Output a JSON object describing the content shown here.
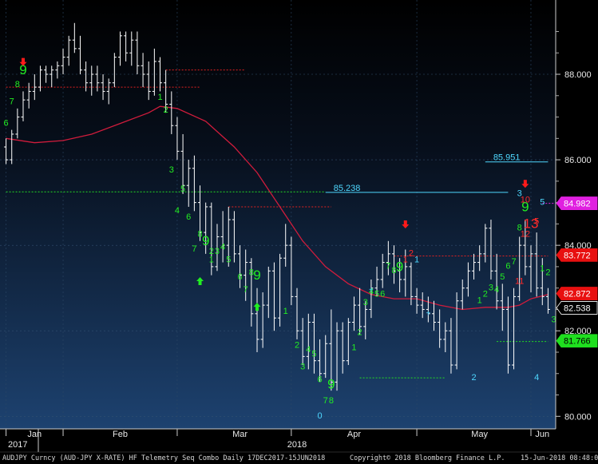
{
  "chart_data": {
    "type": "candlestick",
    "ylim": [
      79.8,
      89.7
    ],
    "y_ticks": [
      "80.000",
      "82.000",
      "84.000",
      "86.000",
      "88.000"
    ],
    "x_labels": [
      "Jan",
      "Feb",
      "Mar",
      "Apr",
      "May",
      "Jun"
    ],
    "year_labels": [
      "2017",
      "2018"
    ],
    "ohlc": [
      [
        86.3,
        86.5,
        85.9,
        86.0
      ],
      [
        86.0,
        86.7,
        85.9,
        86.6
      ],
      [
        86.6,
        87.2,
        86.5,
        87.0
      ],
      [
        87.0,
        87.6,
        86.9,
        87.4
      ],
      [
        87.4,
        87.8,
        87.2,
        87.6
      ],
      [
        87.6,
        88.0,
        87.4,
        87.7
      ],
      [
        87.7,
        88.2,
        87.6,
        88.1
      ],
      [
        88.1,
        88.2,
        87.8,
        88.0
      ],
      [
        88.0,
        88.2,
        87.7,
        88.1
      ],
      [
        88.1,
        88.3,
        87.9,
        88.2
      ],
      [
        88.2,
        88.6,
        88.0,
        88.4
      ],
      [
        88.4,
        88.9,
        88.2,
        88.8
      ],
      [
        88.8,
        89.2,
        88.5,
        88.6
      ],
      [
        88.6,
        88.9,
        88.0,
        88.1
      ],
      [
        88.1,
        88.3,
        87.6,
        87.8
      ],
      [
        87.8,
        88.2,
        87.5,
        88.0
      ],
      [
        88.0,
        88.2,
        87.6,
        87.8
      ],
      [
        87.8,
        88.0,
        87.4,
        87.6
      ],
      [
        87.6,
        87.9,
        87.3,
        87.8
      ],
      [
        87.8,
        88.5,
        87.7,
        88.4
      ],
      [
        88.4,
        89.0,
        88.2,
        88.9
      ],
      [
        88.9,
        89.0,
        88.3,
        88.5
      ],
      [
        88.5,
        89.0,
        88.2,
        88.8
      ],
      [
        88.8,
        89.0,
        88.0,
        88.2
      ],
      [
        88.2,
        88.5,
        87.7,
        88.0
      ],
      [
        88.0,
        88.3,
        87.4,
        87.6
      ],
      [
        87.6,
        88.6,
        87.5,
        88.3
      ],
      [
        88.3,
        88.4,
        87.6,
        87.8
      ],
      [
        87.8,
        88.1,
        87.1,
        87.3
      ],
      [
        87.3,
        87.6,
        86.6,
        86.8
      ],
      [
        86.8,
        87.0,
        86.0,
        86.2
      ],
      [
        86.2,
        86.6,
        85.2,
        85.4
      ],
      [
        85.4,
        86.0,
        84.9,
        85.8
      ],
      [
        85.8,
        86.1,
        84.8,
        85.0
      ],
      [
        85.0,
        85.4,
        84.1,
        84.3
      ],
      [
        84.3,
        85.0,
        83.8,
        84.9
      ],
      [
        84.9,
        85.0,
        83.3,
        83.5
      ],
      [
        83.5,
        84.5,
        83.4,
        84.2
      ],
      [
        84.2,
        84.8,
        83.6,
        84.0
      ],
      [
        84.0,
        84.9,
        83.5,
        84.6
      ],
      [
        84.6,
        84.8,
        83.6,
        83.8
      ],
      [
        83.8,
        84.0,
        83.0,
        83.3
      ],
      [
        83.3,
        83.9,
        82.7,
        83.6
      ],
      [
        83.6,
        83.7,
        82.1,
        82.4
      ],
      [
        82.4,
        83.0,
        81.5,
        81.8
      ],
      [
        81.8,
        82.9,
        81.6,
        82.6
      ],
      [
        82.6,
        83.5,
        82.3,
        83.4
      ],
      [
        83.4,
        83.6,
        82.0,
        82.3
      ],
      [
        82.3,
        83.8,
        82.1,
        83.7
      ],
      [
        83.7,
        84.5,
        83.5,
        84.0
      ],
      [
        84.0,
        84.2,
        82.6,
        82.8
      ],
      [
        82.8,
        83.0,
        81.8,
        82.0
      ],
      [
        82.0,
        82.3,
        81.2,
        81.4
      ],
      [
        81.4,
        82.4,
        81.1,
        82.2
      ],
      [
        82.2,
        82.4,
        81.0,
        81.3
      ],
      [
        81.3,
        81.8,
        80.8,
        81.0
      ],
      [
        81.0,
        81.9,
        80.9,
        81.7
      ],
      [
        81.7,
        82.5,
        80.6,
        80.8
      ],
      [
        80.8,
        82.2,
        80.6,
        82.0
      ],
      [
        82.0,
        82.2,
        81.0,
        81.3
      ],
      [
        81.3,
        82.3,
        81.2,
        82.2
      ],
      [
        82.2,
        82.8,
        82.0,
        82.6
      ],
      [
        82.6,
        83.0,
        81.9,
        82.1
      ],
      [
        82.1,
        82.7,
        81.8,
        82.5
      ],
      [
        82.5,
        83.2,
        82.3,
        83.0
      ],
      [
        83.0,
        83.5,
        82.8,
        83.2
      ],
      [
        83.2,
        83.8,
        83.0,
        83.6
      ],
      [
        83.6,
        84.1,
        83.3,
        83.8
      ],
      [
        83.8,
        84.0,
        83.1,
        83.4
      ],
      [
        83.4,
        83.7,
        82.9,
        83.2
      ],
      [
        83.2,
        83.9,
        82.8,
        83.5
      ],
      [
        83.5,
        83.6,
        82.6,
        82.8
      ],
      [
        82.8,
        83.0,
        82.4,
        82.6
      ],
      [
        82.6,
        82.9,
        82.3,
        82.5
      ],
      [
        82.5,
        82.8,
        82.2,
        82.4
      ],
      [
        82.4,
        82.7,
        82.0,
        82.2
      ],
      [
        82.2,
        82.5,
        81.6,
        81.8
      ],
      [
        81.8,
        82.2,
        81.5,
        82.0
      ],
      [
        82.0,
        82.3,
        81.0,
        81.2
      ],
      [
        81.2,
        82.9,
        81.1,
        82.7
      ],
      [
        82.7,
        83.2,
        82.5,
        83.0
      ],
      [
        83.0,
        83.6,
        82.8,
        83.4
      ],
      [
        83.4,
        83.8,
        83.2,
        83.6
      ],
      [
        83.6,
        84.0,
        83.4,
        83.8
      ],
      [
        83.8,
        84.5,
        83.6,
        84.4
      ],
      [
        84.4,
        84.6,
        83.2,
        83.4
      ],
      [
        83.4,
        83.8,
        82.5,
        82.7
      ],
      [
        82.7,
        83.1,
        82.0,
        82.5
      ],
      [
        82.5,
        82.8,
        81.0,
        81.2
      ],
      [
        81.2,
        83.0,
        81.1,
        82.8
      ],
      [
        82.8,
        84.2,
        82.7,
        84.0
      ],
      [
        84.0,
        84.6,
        83.3,
        83.5
      ],
      [
        83.5,
        84.0,
        82.9,
        83.8
      ],
      [
        83.8,
        84.3,
        82.8,
        83.0
      ],
      [
        83.0,
        83.7,
        82.6,
        82.8
      ],
      [
        82.8,
        83.0,
        82.4,
        82.5
      ]
    ],
    "ma_line": [
      [
        0,
        86.5
      ],
      [
        5,
        86.4
      ],
      [
        10,
        86.45
      ],
      [
        15,
        86.6
      ],
      [
        20,
        86.85
      ],
      [
        25,
        87.1
      ],
      [
        27,
        87.25
      ],
      [
        30,
        87.2
      ],
      [
        35,
        86.9
      ],
      [
        40,
        86.3
      ],
      [
        44,
        85.7
      ],
      [
        48,
        84.9
      ],
      [
        52,
        84.1
      ],
      [
        56,
        83.5
      ],
      [
        60,
        83.1
      ],
      [
        64,
        82.85
      ],
      [
        68,
        82.75
      ],
      [
        72,
        82.75
      ],
      [
        76,
        82.6
      ],
      [
        80,
        82.5
      ],
      [
        84,
        82.55
      ],
      [
        88,
        82.55
      ],
      [
        90,
        82.6
      ],
      [
        92,
        82.75
      ],
      [
        95,
        82.85
      ]
    ],
    "levels": [
      {
        "label": "85.951",
        "value": 85.951,
        "x_start": 84,
        "x_end": 95,
        "color": "#4fd8ff"
      },
      {
        "label": "85.238",
        "value": 85.238,
        "x_start": 56,
        "x_end": 88,
        "color": "#4fd8ff"
      }
    ],
    "red_support_levels": [
      {
        "value": 88.1,
        "x_start": 28,
        "x_end": 42
      },
      {
        "value": 87.7,
        "x_start": 0,
        "x_end": 34
      },
      {
        "value": 84.9,
        "x_start": 39,
        "x_end": 57
      },
      {
        "value": 83.75,
        "x_start": 68,
        "x_end": 95
      }
    ],
    "green_support_levels": [
      {
        "value": 85.25,
        "x_start": 0,
        "x_end": 56
      },
      {
        "value": 80.9,
        "x_start": 62,
        "x_end": 77
      },
      {
        "value": 81.75,
        "x_start": 86,
        "x_end": 95
      }
    ],
    "axis_tags": [
      {
        "label": "84.982",
        "value": 84.982,
        "bg": "#e020e0",
        "fg": "#ffffff"
      },
      {
        "label": "83.772",
        "value": 83.772,
        "bg": "#e81010",
        "fg": "#ffffff"
      },
      {
        "label": "82.872",
        "value": 82.872,
        "bg": "#e81010",
        "fg": "#ffffff"
      },
      {
        "label": "82.538",
        "value": 82.538,
        "bg": "#000000",
        "fg": "#ffffff"
      },
      {
        "label": "81.766",
        "value": 81.766,
        "bg": "#1fe01f",
        "fg": "#000000"
      }
    ],
    "seq_labels": [
      {
        "text": "6",
        "x": 0,
        "y": 86.8,
        "color": "#22ee22"
      },
      {
        "text": "7",
        "x": 1,
        "y": 87.3,
        "color": "#22ee22"
      },
      {
        "text": "8",
        "x": 2,
        "y": 87.7,
        "color": "#22ee22"
      },
      {
        "text": "9",
        "x": 3,
        "y": 88.0,
        "color": "#22ee22",
        "big": true
      },
      {
        "text": "1",
        "x": 27,
        "y": 87.4,
        "color": "#22ee22"
      },
      {
        "text": "2",
        "x": 28,
        "y": 87.1,
        "color": "#22ee22"
      },
      {
        "text": "3",
        "x": 29,
        "y": 85.7,
        "color": "#22ee22"
      },
      {
        "text": "4",
        "x": 30,
        "y": 84.75,
        "color": "#22ee22"
      },
      {
        "text": "5",
        "x": 31,
        "y": 85.25,
        "color": "#22ee22"
      },
      {
        "text": "6",
        "x": 32,
        "y": 84.6,
        "color": "#22ee22"
      },
      {
        "text": "7",
        "x": 33,
        "y": 83.85,
        "color": "#22ee22"
      },
      {
        "text": "8",
        "x": 34,
        "y": 84.2,
        "color": "#22ee22"
      },
      {
        "text": "9",
        "x": 35,
        "y": 84.0,
        "color": "#22ee22",
        "big": true
      },
      {
        "text": "1",
        "x": 36,
        "y": 83.6,
        "color": "#22ee22"
      },
      {
        "text": "2",
        "x": 36,
        "y": 83.8,
        "color": "#22ee22"
      },
      {
        "text": "3",
        "x": 37,
        "y": 83.8,
        "color": "#22ee22"
      },
      {
        "text": "4",
        "x": 38,
        "y": 83.9,
        "color": "#22ee22"
      },
      {
        "text": "5",
        "x": 39,
        "y": 83.6,
        "color": "#22ee22"
      },
      {
        "text": "6",
        "x": 41,
        "y": 83.2,
        "color": "#22ee22"
      },
      {
        "text": "7",
        "x": 42,
        "y": 82.9,
        "color": "#22ee22"
      },
      {
        "text": "8",
        "x": 43,
        "y": 83.3,
        "color": "#22ee22"
      },
      {
        "text": "9",
        "x": 44,
        "y": 83.2,
        "color": "#22ee22",
        "big": true
      },
      {
        "text": "1",
        "x": 49,
        "y": 82.4,
        "color": "#22ee22"
      },
      {
        "text": "2",
        "x": 51,
        "y": 81.6,
        "color": "#22ee22"
      },
      {
        "text": "3",
        "x": 52,
        "y": 81.1,
        "color": "#22ee22"
      },
      {
        "text": "4",
        "x": 53,
        "y": 81.5,
        "color": "#22ee22"
      },
      {
        "text": "5",
        "x": 54,
        "y": 81.4,
        "color": "#22ee22"
      },
      {
        "text": "6",
        "x": 55,
        "y": 80.8,
        "color": "#22ee22"
      },
      {
        "text": "7",
        "x": 56,
        "y": 80.3,
        "color": "#22ee22"
      },
      {
        "text": "8",
        "x": 57,
        "y": 80.3,
        "color": "#22ee22"
      },
      {
        "text": "9",
        "x": 57,
        "y": 80.65,
        "color": "#22ee22",
        "big": true
      },
      {
        "text": "0",
        "x": 55,
        "y": 79.95,
        "color": "#4fd8ff"
      },
      {
        "text": "1",
        "x": 61,
        "y": 81.55,
        "color": "#22ee22"
      },
      {
        "text": "2",
        "x": 62,
        "y": 81.9,
        "color": "#22ee22"
      },
      {
        "text": "3",
        "x": 63,
        "y": 82.6,
        "color": "#22ee22"
      },
      {
        "text": "4",
        "x": 64,
        "y": 82.85,
        "color": "#22ee22"
      },
      {
        "text": "5",
        "x": 65,
        "y": 82.8,
        "color": "#22ee22"
      },
      {
        "text": "6",
        "x": 66,
        "y": 82.8,
        "color": "#22ee22"
      },
      {
        "text": "7",
        "x": 67,
        "y": 83.45,
        "color": "#22ee22"
      },
      {
        "text": "8",
        "x": 68,
        "y": 83.35,
        "color": "#22ee22"
      },
      {
        "text": "9",
        "x": 69,
        "y": 83.4,
        "color": "#22ee22",
        "big": true
      },
      {
        "text": "1",
        "x": 70,
        "y": 83.6,
        "color": "#ff2a2a"
      },
      {
        "text": "2",
        "x": 71,
        "y": 83.75,
        "color": "#ff2a2a"
      },
      {
        "text": "1",
        "x": 72,
        "y": 83.6,
        "color": "#4fd8ff"
      },
      {
        "text": "1",
        "x": 83,
        "y": 82.65,
        "color": "#22ee22"
      },
      {
        "text": "2",
        "x": 84,
        "y": 82.8,
        "color": "#22ee22"
      },
      {
        "text": "3",
        "x": 85,
        "y": 82.95,
        "color": "#22ee22"
      },
      {
        "text": "4",
        "x": 86,
        "y": 82.9,
        "color": "#22ee22"
      },
      {
        "text": "5",
        "x": 87,
        "y": 83.2,
        "color": "#22ee22"
      },
      {
        "text": "6",
        "x": 88,
        "y": 83.45,
        "color": "#22ee22"
      },
      {
        "text": "7",
        "x": 89,
        "y": 83.55,
        "color": "#22ee22"
      },
      {
        "text": "8",
        "x": 90,
        "y": 84.35,
        "color": "#22ee22"
      },
      {
        "text": "9",
        "x": 91,
        "y": 84.8,
        "color": "#22ee22",
        "big": true
      },
      {
        "text": "3",
        "x": 90,
        "y": 85.15,
        "color": "#4fd8ff"
      },
      {
        "text": "10",
        "x": 91,
        "y": 85.0,
        "color": "#ff2a2a"
      },
      {
        "text": "2",
        "x": 82,
        "y": 80.85,
        "color": "#4fd8ff"
      },
      {
        "text": "4",
        "x": 93,
        "y": 80.85,
        "color": "#4fd8ff"
      },
      {
        "text": "4",
        "x": 97,
        "y": 82.0,
        "color": "#22ee22"
      },
      {
        "text": "3",
        "x": 96,
        "y": 82.2,
        "color": "#22ee22"
      },
      {
        "text": "2",
        "x": 95,
        "y": 83.3,
        "color": "#22ee22"
      },
      {
        "text": "1",
        "x": 94,
        "y": 83.4,
        "color": "#22ee22"
      },
      {
        "text": "5",
        "x": 94,
        "y": 84.95,
        "color": "#4fd8ff"
      },
      {
        "text": "12",
        "x": 91,
        "y": 84.2,
        "color": "#ff2a2a"
      },
      {
        "text": "11",
        "x": 90,
        "y": 83.1,
        "color": "#ff2a2a"
      },
      {
        "text": "13",
        "x": 92,
        "y": 84.4,
        "color": "#ff2a2a",
        "big": true
      },
      {
        "text": "5",
        "x": 93,
        "y": 84.5,
        "color": "#ff2a2a"
      }
    ],
    "arrows": [
      {
        "dir": "down",
        "x": 3,
        "y": 88.25,
        "color": "#ff1a1a"
      },
      {
        "dir": "down",
        "x": 70,
        "y": 84.45,
        "color": "#ff1a1a"
      },
      {
        "dir": "down",
        "x": 91,
        "y": 85.4,
        "color": "#ff1a1a"
      },
      {
        "dir": "up",
        "x": 34,
        "y": 83.2,
        "color": "#22ee22"
      },
      {
        "dir": "up",
        "x": 44,
        "y": 82.6,
        "color": "#22ee22"
      }
    ],
    "plus_marks": [
      {
        "x": 64,
        "y": 82.9,
        "color": "#4fd8ff"
      },
      {
        "x": 74,
        "y": 82.35,
        "color": "#4fd8ff"
      }
    ]
  },
  "footer": {
    "left": "AUDJPY Curncy (AUD-JPY X-RATE) HF Telemetry Seq Combo  Daily 17DEC2017-15JUN2018",
    "mid": "Copyright© 2018 Bloomberg Finance L.P.",
    "right": "15-Jun-2018 08:48:02"
  },
  "colors": {
    "bg_top": "#000000",
    "bg_bottom": "#1b3d66",
    "candle": "#ffffff",
    "ma_line": "#d01c3c",
    "grid": "#3b5574"
  }
}
